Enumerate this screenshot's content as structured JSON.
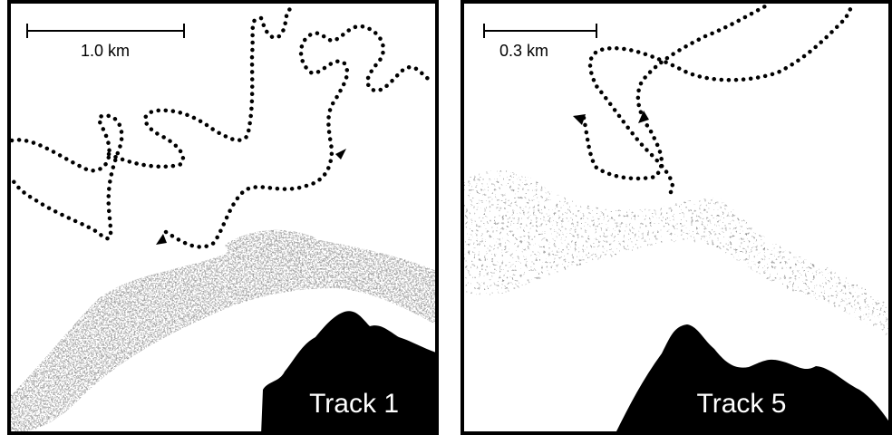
{
  "panels": [
    {
      "id": "left",
      "scale_label": "1.0 km",
      "track_label": "Track 1"
    },
    {
      "id": "right",
      "scale_label": "0.3 km",
      "track_label": "Track 5"
    }
  ],
  "colors": {
    "border": "#000000",
    "track": "#000000",
    "land": "#000000",
    "plume": "#2b2b2b",
    "background": "#ffffff"
  }
}
